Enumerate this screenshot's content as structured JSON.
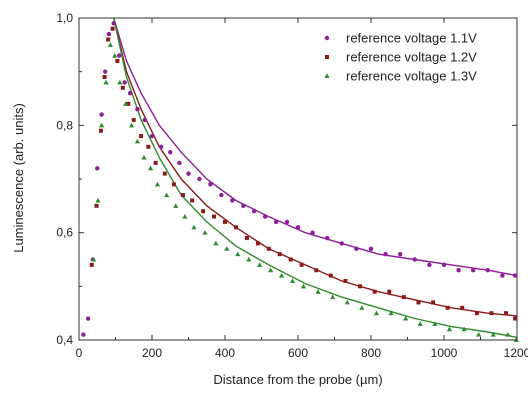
{
  "chart_data": {
    "type": "scatter",
    "xlabel": "Distance from the probe (µm)",
    "ylabel": "Luminescence (arb. units)",
    "xlim": [
      0,
      1200
    ],
    "ylim": [
      0.4,
      1.0
    ],
    "xticks": [
      "0",
      "200",
      "400",
      "600",
      "800",
      "1000",
      "1200"
    ],
    "yticks": [
      "0,4",
      "0,6",
      "0,8",
      "1,0"
    ],
    "grid": false,
    "legend_position": "top-right",
    "series": [
      {
        "name": "reference voltage 1.1V",
        "marker": "circle",
        "color": "#8e1e9a",
        "x": [
          12,
          25,
          38,
          50,
          62,
          72,
          82,
          95,
          110,
          125,
          140,
          160,
          180,
          200,
          225,
          250,
          275,
          300,
          330,
          360,
          390,
          420,
          450,
          480,
          510,
          540,
          570,
          600,
          640,
          680,
          720,
          760,
          800,
          840,
          880,
          920,
          960,
          1000,
          1040,
          1080,
          1120,
          1160,
          1195
        ],
        "y": [
          0.41,
          0.44,
          0.55,
          0.72,
          0.82,
          0.9,
          0.97,
          0.99,
          0.93,
          0.88,
          0.86,
          0.83,
          0.81,
          0.78,
          0.76,
          0.75,
          0.73,
          0.71,
          0.7,
          0.69,
          0.67,
          0.66,
          0.65,
          0.64,
          0.63,
          0.62,
          0.62,
          0.61,
          0.6,
          0.59,
          0.58,
          0.57,
          0.57,
          0.56,
          0.56,
          0.55,
          0.54,
          0.54,
          0.53,
          0.53,
          0.53,
          0.52,
          0.52
        ]
      },
      {
        "name": "reference voltage 1.2V",
        "marker": "square",
        "color": "#8b1a1a",
        "x": [
          35,
          48,
          60,
          70,
          80,
          92,
          105,
          120,
          135,
          150,
          170,
          190,
          210,
          235,
          260,
          285,
          310,
          340,
          370,
          400,
          430,
          460,
          490,
          520,
          550,
          580,
          610,
          650,
          690,
          730,
          770,
          810,
          850,
          890,
          930,
          970,
          1010,
          1050,
          1090,
          1130,
          1170,
          1195
        ],
        "y": [
          0.54,
          0.65,
          0.79,
          0.89,
          0.96,
          0.98,
          0.92,
          0.87,
          0.84,
          0.81,
          0.78,
          0.76,
          0.73,
          0.71,
          0.69,
          0.67,
          0.66,
          0.64,
          0.63,
          0.62,
          0.61,
          0.59,
          0.58,
          0.57,
          0.56,
          0.55,
          0.54,
          0.53,
          0.52,
          0.51,
          0.5,
          0.49,
          0.49,
          0.48,
          0.47,
          0.47,
          0.46,
          0.46,
          0.45,
          0.45,
          0.45,
          0.44
        ]
      },
      {
        "name": "reference voltage 1.3V",
        "marker": "triangle",
        "color": "#2e8b2e",
        "x": [
          40,
          52,
          62,
          74,
          86,
          98,
          112,
          128,
          144,
          160,
          178,
          196,
          215,
          240,
          265,
          290,
          315,
          345,
          375,
          405,
          435,
          465,
          495,
          525,
          555,
          585,
          615,
          655,
          695,
          735,
          775,
          815,
          855,
          895,
          935,
          975,
          1015,
          1055,
          1095,
          1135,
          1175,
          1198
        ],
        "y": [
          0.55,
          0.66,
          0.8,
          0.88,
          0.95,
          0.93,
          0.88,
          0.84,
          0.8,
          0.77,
          0.74,
          0.72,
          0.69,
          0.67,
          0.65,
          0.63,
          0.61,
          0.6,
          0.58,
          0.57,
          0.56,
          0.55,
          0.54,
          0.53,
          0.52,
          0.51,
          0.5,
          0.49,
          0.48,
          0.47,
          0.46,
          0.45,
          0.45,
          0.44,
          0.43,
          0.43,
          0.42,
          0.42,
          0.41,
          0.41,
          0.41,
          0.4
        ]
      }
    ],
    "fit_curves": [
      {
        "series": "reference voltage 1.1V",
        "color": "#8e1e9a",
        "x": [
          95,
          130,
          170,
          220,
          280,
          350,
          430,
          520,
          620,
          720,
          820,
          920,
          1020,
          1120,
          1200
        ],
        "y": [
          1.0,
          0.92,
          0.86,
          0.8,
          0.75,
          0.7,
          0.66,
          0.63,
          0.6,
          0.58,
          0.56,
          0.55,
          0.54,
          0.53,
          0.52
        ]
      },
      {
        "series": "reference voltage 1.2V",
        "color": "#8b1a1a",
        "x": [
          95,
          130,
          170,
          220,
          280,
          350,
          430,
          520,
          620,
          720,
          820,
          920,
          1020,
          1120,
          1200
        ],
        "y": [
          1.0,
          0.9,
          0.83,
          0.76,
          0.7,
          0.65,
          0.61,
          0.57,
          0.54,
          0.51,
          0.49,
          0.475,
          0.46,
          0.45,
          0.445
        ]
      },
      {
        "series": "reference voltage 1.3V",
        "color": "#2e8b2e",
        "x": [
          95,
          130,
          170,
          220,
          280,
          350,
          430,
          520,
          620,
          720,
          820,
          920,
          1020,
          1120,
          1200
        ],
        "y": [
          1.0,
          0.89,
          0.81,
          0.74,
          0.67,
          0.62,
          0.575,
          0.54,
          0.505,
          0.48,
          0.46,
          0.44,
          0.425,
          0.415,
          0.405
        ]
      }
    ]
  }
}
